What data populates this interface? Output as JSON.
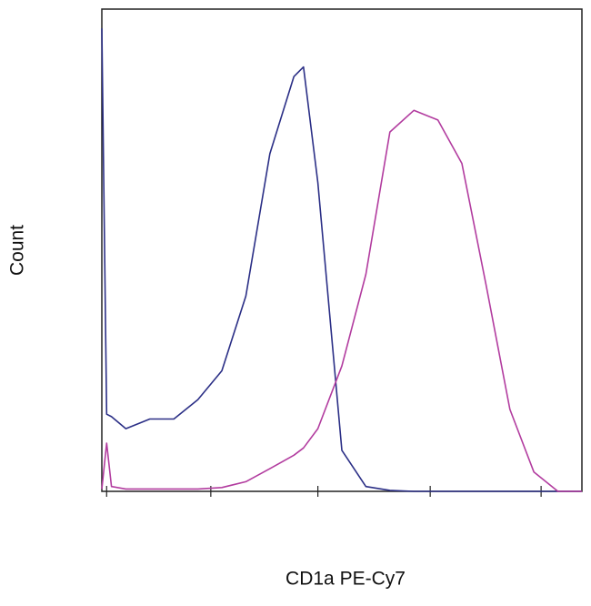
{
  "chart_data": {
    "type": "line",
    "x_label": "CD1a PE-Cy7",
    "y_label": "Count",
    "x": [
      0,
      1,
      2,
      5,
      10,
      15,
      20,
      25,
      30,
      35,
      40,
      42,
      45,
      50,
      55,
      60,
      65,
      70,
      75,
      80,
      85,
      90,
      95,
      100
    ],
    "series": [
      {
        "color": "#2b2f86",
        "values": [
          96,
          16,
          15.5,
          13,
          15,
          15,
          19,
          25,
          40.5,
          70,
          86,
          88,
          64,
          8.5,
          1,
          0.2,
          0,
          0,
          0,
          0,
          0,
          0,
          0,
          0
        ]
      },
      {
        "color": "#b23c9f",
        "values": [
          0.5,
          10,
          1,
          0.5,
          0.5,
          0.5,
          0.5,
          0.8,
          2,
          4.7,
          7.5,
          9,
          13,
          26,
          45,
          74.5,
          79,
          77,
          68,
          43,
          17,
          4,
          0,
          0
        ]
      }
    ],
    "xlim": [
      0,
      100
    ],
    "ylim": [
      0,
      100
    ],
    "xticks": [
      1,
      22.7,
      45,
      68.4,
      91.5
    ]
  }
}
